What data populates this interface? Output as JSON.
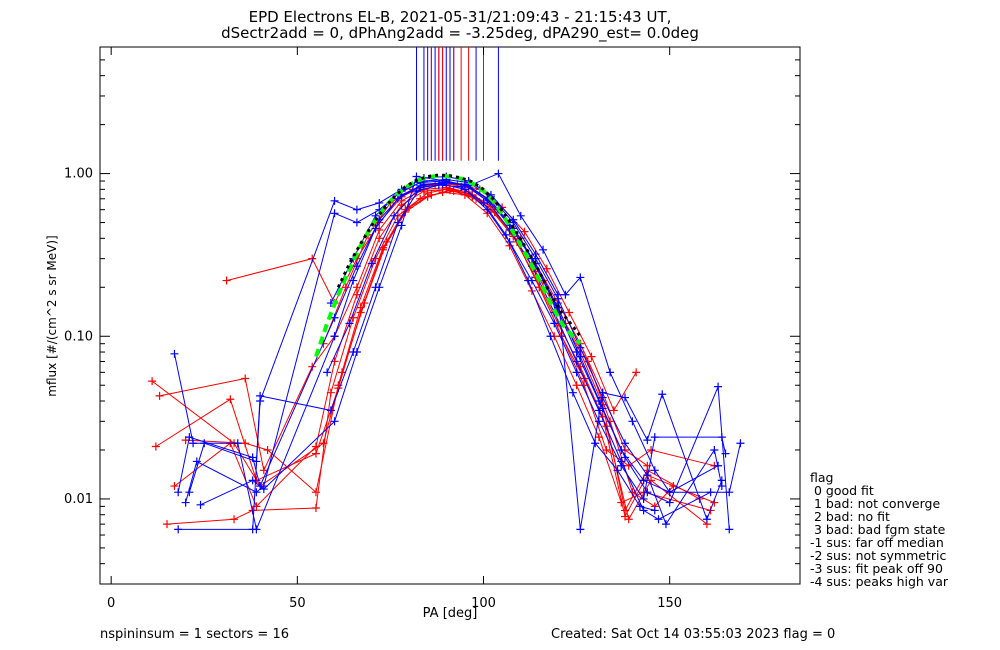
{
  "header": {
    "title_line1": "EPD Electrons EL-B, 2021-05-31/21:09:43 - 21:15:43 UT,",
    "title_line2": "dSectr2add = 0, dPhAng2add = -3.25deg, dPA290_est=   0.0deg"
  },
  "footer": {
    "left": "nspininsum =  1  sectors = 16",
    "right": "Created: Sat Oct 14 03:55:03 2023   flag = 0"
  },
  "legend": {
    "title": "flag",
    "items": [
      " 0 good fit",
      " 1 bad: not converge",
      " 2 bad: no fit",
      " 3 bad: bad fgm state",
      "-1 sus: far off median",
      "-2 sus: not symmetric",
      "-3 sus: fit peak off 90",
      "-4 sus: peaks high var"
    ]
  },
  "colors": {
    "series_red": "#ff0000",
    "series_blue": "#0000ff",
    "fit_green": "#00ff00",
    "fit_black": "#000000"
  },
  "chart_data": {
    "type": "line",
    "xlabel": "PA [deg]",
    "ylabel": "mflux [#/(cm^2 s sr MeV)]",
    "xlim": [
      -3,
      185
    ],
    "ylim": [
      0.003,
      6.0
    ],
    "yscale": "log",
    "x_ticks": [
      0,
      50,
      100,
      150
    ],
    "y_ticks": [
      0.01,
      0.1,
      1.0
    ],
    "y_tick_labels": [
      "0.01",
      "0.10",
      "1.00"
    ],
    "grid": false,
    "legend_position": "right",
    "markers": "+",
    "series": [
      {
        "color": "red",
        "x": [
          11,
          33,
          40,
          57,
          62,
          68,
          74,
          80,
          86,
          92,
          98,
          104,
          110,
          116,
          122,
          128,
          134,
          140,
          146,
          151
        ],
        "y": [
          0.053,
          0.022,
          0.012,
          0.022,
          0.06,
          0.16,
          0.38,
          0.62,
          0.74,
          0.78,
          0.7,
          0.6,
          0.4,
          0.22,
          0.12,
          0.07,
          0.03,
          0.011,
          0.009,
          0.012
        ]
      },
      {
        "color": "red",
        "x": [
          12,
          32,
          39,
          55,
          61,
          67,
          73,
          79,
          85,
          91,
          97,
          103,
          109,
          115,
          121,
          127,
          133,
          139,
          145,
          160
        ],
        "y": [
          0.021,
          0.041,
          0.013,
          0.019,
          0.048,
          0.14,
          0.34,
          0.58,
          0.72,
          0.79,
          0.72,
          0.58,
          0.38,
          0.2,
          0.1,
          0.055,
          0.028,
          0.0075,
          0.013,
          0.007
        ]
      },
      {
        "color": "red",
        "x": [
          13,
          36,
          41,
          54,
          60,
          66,
          72,
          78,
          84,
          90,
          96,
          102,
          108,
          114,
          120,
          126,
          132,
          138,
          144,
          158
        ],
        "y": [
          0.043,
          0.055,
          0.015,
          0.065,
          0.1,
          0.2,
          0.45,
          0.68,
          0.8,
          0.82,
          0.77,
          0.63,
          0.42,
          0.25,
          0.14,
          0.08,
          0.038,
          0.0085,
          0.015,
          0.01
        ]
      },
      {
        "color": "red",
        "x": [
          15,
          33,
          38,
          55,
          59,
          65,
          71,
          77,
          83,
          89,
          95,
          101,
          107,
          113,
          119,
          125,
          131,
          137,
          143,
          161
        ],
        "y": [
          0.007,
          0.0075,
          0.0085,
          0.0088,
          0.045,
          0.13,
          0.3,
          0.55,
          0.7,
          0.77,
          0.74,
          0.57,
          0.36,
          0.19,
          0.1,
          0.05,
          0.024,
          0.0095,
          0.011,
          0.0085
        ]
      },
      {
        "color": "red",
        "x": [
          17,
          32,
          39,
          55,
          60,
          66,
          72,
          78,
          84,
          90,
          96,
          102,
          108,
          114,
          120,
          126,
          132,
          138,
          144,
          162
        ],
        "y": [
          0.012,
          0.022,
          0.009,
          0.021,
          0.07,
          0.18,
          0.4,
          0.64,
          0.78,
          0.8,
          0.75,
          0.6,
          0.41,
          0.23,
          0.12,
          0.065,
          0.032,
          0.0078,
          0.014,
          0.0095
        ]
      },
      {
        "color": "red",
        "x": [
          31,
          54,
          60,
          66,
          72,
          78,
          84,
          90,
          96,
          102,
          108,
          114,
          120,
          126,
          132,
          138,
          144
        ],
        "y": [
          0.22,
          0.3,
          0.16,
          0.3,
          0.5,
          0.72,
          0.84,
          0.87,
          0.82,
          0.66,
          0.46,
          0.28,
          0.16,
          0.09,
          0.045,
          0.02,
          0.016
        ]
      },
      {
        "color": "red",
        "x": [
          20,
          36,
          42,
          55,
          61,
          67,
          73,
          79,
          85,
          91,
          97,
          103,
          109,
          115,
          121,
          127,
          133,
          139,
          145,
          162
        ],
        "y": [
          0.023,
          0.022,
          0.02,
          0.011,
          0.05,
          0.15,
          0.35,
          0.6,
          0.76,
          0.81,
          0.74,
          0.58,
          0.38,
          0.2,
          0.1,
          0.05,
          0.02,
          0.016,
          0.02,
          0.016
        ]
      },
      {
        "color": "red",
        "x": [
          57,
          63,
          69,
          75,
          81,
          87,
          93,
          99,
          105,
          111,
          117,
          123,
          129,
          135,
          141
        ],
        "y": [
          0.09,
          0.2,
          0.42,
          0.66,
          0.8,
          0.85,
          0.86,
          0.8,
          0.62,
          0.44,
          0.26,
          0.14,
          0.075,
          0.035,
          0.06
        ]
      },
      {
        "color": "blue",
        "x": [
          17,
          22,
          34,
          39,
          60,
          65,
          71,
          77,
          83,
          89,
          95,
          101,
          107,
          113,
          119,
          125,
          131,
          137,
          143,
          150,
          166,
          169
        ],
        "y": [
          0.078,
          0.022,
          0.022,
          0.0065,
          0.1,
          0.22,
          0.46,
          0.7,
          0.84,
          0.88,
          0.86,
          0.7,
          0.48,
          0.3,
          0.16,
          0.08,
          0.04,
          0.02,
          0.013,
          0.011,
          0.011,
          0.022
        ]
      },
      {
        "color": "blue",
        "x": [
          18,
          21,
          38,
          40,
          60,
          66,
          72,
          78,
          84,
          90,
          96,
          102,
          108,
          114,
          120,
          126,
          132,
          138,
          144,
          150,
          163,
          166
        ],
        "y": [
          0.011,
          0.024,
          0.018,
          0.012,
          0.13,
          0.27,
          0.52,
          0.74,
          0.86,
          0.88,
          0.84,
          0.68,
          0.46,
          0.28,
          0.15,
          0.075,
          0.036,
          0.018,
          0.011,
          0.0095,
          0.049,
          0.0065
        ]
      },
      {
        "color": "blue",
        "x": [
          20,
          23,
          39,
          41,
          60,
          66,
          72,
          78,
          84,
          90,
          96,
          102,
          108,
          114,
          120,
          126,
          132,
          138,
          144,
          149,
          162,
          164
        ],
        "y": [
          0.0095,
          0.017,
          0.011,
          0.012,
          0.57,
          0.5,
          0.6,
          0.78,
          0.9,
          0.92,
          0.88,
          0.72,
          0.5,
          0.3,
          0.17,
          0.085,
          0.042,
          0.022,
          0.014,
          0.007,
          0.02,
          0.012
        ]
      },
      {
        "color": "blue",
        "x": [
          18,
          38,
          40,
          60,
          66,
          72,
          78,
          84,
          90,
          96,
          102,
          108,
          114,
          120,
          126,
          132,
          138,
          144,
          148,
          160,
          164
        ],
        "y": [
          0.0065,
          0.0065,
          0.04,
          0.68,
          0.6,
          0.66,
          0.8,
          0.94,
          0.96,
          0.9,
          0.74,
          0.52,
          0.32,
          0.18,
          0.0065,
          0.045,
          0.042,
          0.023,
          0.044,
          0.0075,
          0.013
        ]
      },
      {
        "color": "blue",
        "x": [
          21,
          25,
          39,
          40,
          59,
          65,
          71,
          77,
          83,
          89,
          95,
          101,
          107,
          113,
          119,
          125,
          131,
          137,
          143,
          146,
          164,
          165
        ],
        "y": [
          0.011,
          0.022,
          0.017,
          0.043,
          0.035,
          0.08,
          0.2,
          0.5,
          0.82,
          0.86,
          0.8,
          0.6,
          0.38,
          0.22,
          0.12,
          0.06,
          0.03,
          0.016,
          0.01,
          0.024,
          0.024,
          0.019
        ]
      },
      {
        "color": "blue",
        "x": [
          24,
          38,
          41,
          60,
          66,
          72,
          78,
          82,
          90,
          96,
          104,
          110,
          116,
          122,
          126,
          134,
          140,
          146,
          150,
          163
        ],
        "y": [
          0.0092,
          0.013,
          0.0115,
          0.03,
          0.08,
          0.2,
          0.48,
          0.96,
          0.9,
          0.84,
          1.0,
          0.55,
          0.34,
          0.18,
          0.23,
          0.06,
          0.03,
          0.015,
          0.011,
          0.016
        ]
      },
      {
        "color": "blue",
        "x": [
          59,
          65,
          71,
          77,
          83,
          89,
          95,
          101,
          107,
          113,
          119,
          125,
          131,
          137,
          143,
          147,
          161
        ],
        "y": [
          0.16,
          0.3,
          0.55,
          0.75,
          0.88,
          0.9,
          0.85,
          0.68,
          0.45,
          0.27,
          0.14,
          0.07,
          0.035,
          0.017,
          0.0085,
          0.0075,
          0.011
        ]
      },
      {
        "color": "blue",
        "x": [
          58,
          64,
          70,
          76,
          82,
          88,
          94,
          100,
          106,
          112,
          118,
          124,
          130,
          136,
          142,
          146
        ],
        "y": [
          0.06,
          0.12,
          0.28,
          0.55,
          0.78,
          0.85,
          0.83,
          0.66,
          0.42,
          0.22,
          0.1,
          0.045,
          0.022,
          0.015,
          0.009,
          0.0085
        ]
      },
      {
        "color": "green",
        "x": [
          55,
          58,
          61,
          64,
          67,
          70,
          73,
          76,
          79,
          82,
          85,
          88,
          91,
          94,
          97,
          100,
          103,
          106,
          109,
          112,
          115,
          118,
          121,
          124,
          126
        ],
        "y": [
          0.075,
          0.12,
          0.18,
          0.26,
          0.36,
          0.48,
          0.6,
          0.72,
          0.82,
          0.9,
          0.95,
          0.97,
          0.96,
          0.93,
          0.87,
          0.78,
          0.66,
          0.52,
          0.4,
          0.3,
          0.22,
          0.16,
          0.12,
          0.1,
          0.09
        ]
      },
      {
        "color": "black",
        "x": [
          61,
          64,
          67,
          70,
          73,
          76,
          79,
          82,
          85,
          88,
          91,
          94,
          97,
          100,
          103,
          106,
          109,
          112,
          115,
          118,
          121,
          124,
          126
        ],
        "y": [
          0.2,
          0.28,
          0.37,
          0.48,
          0.6,
          0.72,
          0.83,
          0.91,
          0.96,
          0.98,
          0.97,
          0.94,
          0.89,
          0.8,
          0.68,
          0.55,
          0.43,
          0.33,
          0.25,
          0.18,
          0.14,
          0.115,
          0.1
        ]
      }
    ],
    "vertical_lines": [
      {
        "color": "blue",
        "x": [
          82,
          84,
          85,
          86,
          87,
          88,
          89,
          90,
          91,
          92,
          98,
          104
        ]
      },
      {
        "color": "red",
        "x": [
          86,
          88,
          89,
          92,
          94,
          96,
          100
        ]
      }
    ]
  }
}
